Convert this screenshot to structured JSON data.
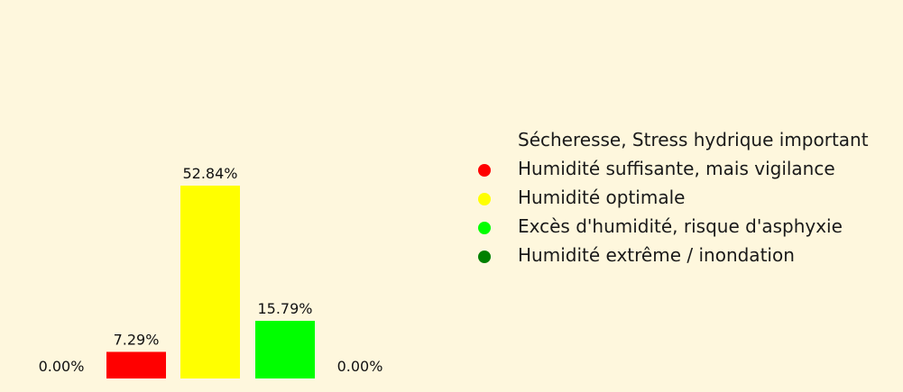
{
  "chart_data": {
    "type": "bar",
    "categories": [
      "Sécheresse, Stress hydrique important",
      "Humidité suffisante, mais vigilance",
      "Humidité optimale",
      "Excès d'humidité, risque d'asphyxie",
      "Humidité extrême / inondation"
    ],
    "values": [
      0.0,
      7.29,
      52.84,
      15.79,
      0.0
    ],
    "data_labels": [
      "0.00%",
      "7.29%",
      "52.84%",
      "15.79%",
      "0.00%"
    ],
    "colors": [
      "#fef7dd",
      "#ff0000",
      "#ffff00",
      "#00ff00",
      "#008000"
    ],
    "ylim": [
      0,
      100
    ],
    "axes_visible": false,
    "grid": false,
    "legend_placement": "right",
    "title": "",
    "xlabel": "",
    "ylabel": ""
  },
  "background_color": "#fef7dd"
}
